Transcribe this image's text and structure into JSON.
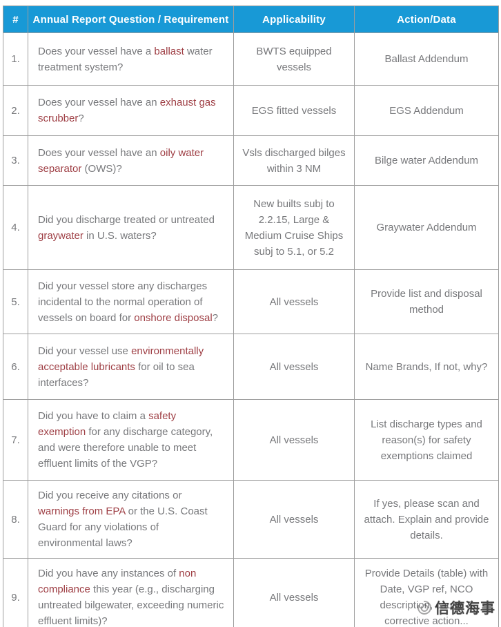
{
  "colors": {
    "header_bg": "#1899d6",
    "header_text": "#ffffff",
    "body_text": "#77787b",
    "highlight_red": "#9e3e44",
    "border": "#9d9d9d"
  },
  "table": {
    "columns": [
      {
        "label": "#"
      },
      {
        "label": "Annual Report Question / Requirement"
      },
      {
        "label": "Applicability"
      },
      {
        "label": "Action/Data"
      }
    ],
    "rows": [
      {
        "num": "1.",
        "question": [
          {
            "t": "Does your vessel have a "
          },
          {
            "t": "ballast",
            "hl": true
          },
          {
            "t": " water treatment system?"
          }
        ],
        "applicability": "BWTS equipped vessels",
        "action": "Ballast Addendum"
      },
      {
        "num": "2.",
        "question": [
          {
            "t": "Does your vessel have an "
          },
          {
            "t": "exhaust gas scrubber",
            "hl": true
          },
          {
            "t": "?"
          }
        ],
        "applicability": "EGS fitted vessels",
        "action": "EGS Addendum"
      },
      {
        "num": "3.",
        "question": [
          {
            "t": "Does your vessel have an "
          },
          {
            "t": "oily water separator",
            "hl": true
          },
          {
            "t": " (OWS)?"
          }
        ],
        "applicability": "Vsls discharged bilges within 3 NM",
        "action": "Bilge water Addendum"
      },
      {
        "num": "4.",
        "question": [
          {
            "t": "Did you discharge treated or untreated "
          },
          {
            "t": "graywater",
            "hl": true
          },
          {
            "t": " in U.S. waters?"
          }
        ],
        "applicability": "New builts subj to 2.2.15, Large & Medium Cruise Ships subj to 5.1, or 5.2",
        "action": "Graywater Addendum"
      },
      {
        "num": "5.",
        "question": [
          {
            "t": "Did your vessel store any discharges incidental to the normal operation of vessels on board for "
          },
          {
            "t": "onshore disposal",
            "hl": true
          },
          {
            "t": "?"
          }
        ],
        "applicability": "All vessels",
        "action": "Provide list and disposal method"
      },
      {
        "num": "6.",
        "question": [
          {
            "t": "Did your vessel use "
          },
          {
            "t": "environmentally acceptable lubricants",
            "hl": true
          },
          {
            "t": " for oil to sea interfaces?"
          }
        ],
        "applicability": "All vessels",
        "action": "Name Brands, If not, why?"
      },
      {
        "num": "7.",
        "question": [
          {
            "t": "Did you have to claim a "
          },
          {
            "t": "safety exemption",
            "hl": true
          },
          {
            "t": " for any discharge category, and were therefore unable to meet effluent limits of the VGP?"
          }
        ],
        "applicability": "All vessels",
        "action": "List discharge types and reason(s) for safety exemptions claimed"
      },
      {
        "num": "8.",
        "question": [
          {
            "t": "Did you receive any citations or "
          },
          {
            "t": "warnings from EPA",
            "hl": true
          },
          {
            "t": " or the U.S. Coast Guard for any violations of environmental laws?"
          }
        ],
        "applicability": "All vessels",
        "action": "If yes, please scan and attach. Explain and provide details."
      },
      {
        "num": "9.",
        "question": [
          {
            "t": "Did you have any instances of "
          },
          {
            "t": "non compliance",
            "hl": true
          },
          {
            "t": " this year (e.g., discharging untreated bilgewater, exceeding numeric effluent limits)?"
          }
        ],
        "applicability": "All vessels",
        "action": "Provide Details (table) with Date, VGP ref, NCO description, cause & corrective action..."
      }
    ]
  },
  "watermark": {
    "text": "信德海事"
  }
}
